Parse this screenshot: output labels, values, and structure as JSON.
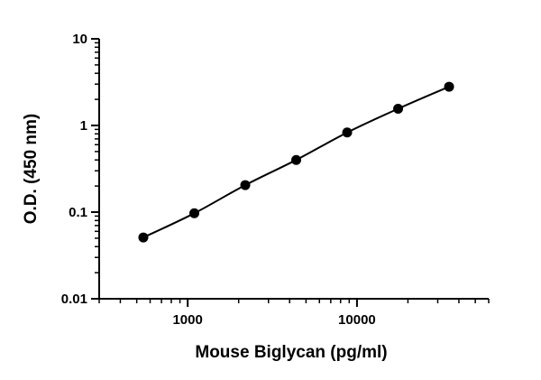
{
  "chart_data": {
    "type": "scatter",
    "title": "",
    "xlabel": "Mouse Biglycan (pg/ml)",
    "ylabel": "O.D. (450 nm)",
    "xscale": "log",
    "yscale": "log",
    "xlim": [
      300,
      60000
    ],
    "ylim": [
      0.01,
      10
    ],
    "x_ticks": [
      {
        "value": 1000,
        "label": "1000"
      },
      {
        "value": 10000,
        "label": "10000"
      }
    ],
    "y_ticks": [
      {
        "value": 0.01,
        "label": "0.01"
      },
      {
        "value": 0.1,
        "label": "0.1"
      },
      {
        "value": 1,
        "label": "1"
      },
      {
        "value": 10,
        "label": "10"
      }
    ],
    "grid": false,
    "legend": "none",
    "series": [
      {
        "x": [
          547,
          1094,
          2188,
          4375,
          8750,
          17500,
          35000
        ],
        "y": [
          0.051,
          0.097,
          0.205,
          0.4,
          0.83,
          1.56,
          2.8
        ],
        "marker": "filled-circle",
        "fit_line": true
      }
    ],
    "colors": {
      "points": "#000000",
      "line": "#000000",
      "axes": "#000000"
    }
  }
}
